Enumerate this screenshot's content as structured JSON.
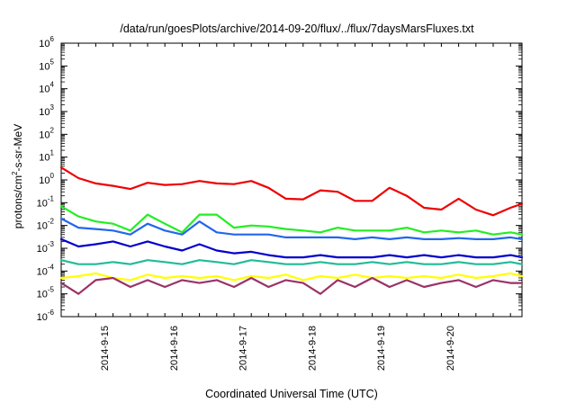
{
  "chart_data": {
    "type": "line",
    "title": "/data/run/goesPlots/archive/2014-09-20/flux/../flux/7daysMarsFluxes.txt",
    "xlabel": "Coordinated Universal Time (UTC)",
    "ylabel": {
      "base": "protons/cm",
      "sup": "2",
      "rest": "-s-sr-MeV"
    },
    "yscale": "log",
    "ylim_exponents": [
      -6,
      6
    ],
    "y_ticks": [
      {
        "base": "10",
        "exp": "-6"
      },
      {
        "base": "10",
        "exp": "-5"
      },
      {
        "base": "10",
        "exp": "-4"
      },
      {
        "base": "10",
        "exp": "-3"
      },
      {
        "base": "10",
        "exp": "-2"
      },
      {
        "base": "10",
        "exp": "-1"
      },
      {
        "base": "10",
        "exp": "0"
      },
      {
        "base": "10",
        "exp": "1"
      },
      {
        "base": "10",
        "exp": "2"
      },
      {
        "base": "10",
        "exp": "3"
      },
      {
        "base": "10",
        "exp": "4"
      },
      {
        "base": "10",
        "exp": "5"
      },
      {
        "base": "10",
        "exp": "6"
      }
    ],
    "xlim": [
      "2014-09-14 09:00",
      "2014-09-21 01:00"
    ],
    "x_ticks": [
      {
        "date": "2014-09-15",
        "label": "2014-9-15"
      },
      {
        "date": "2014-09-16",
        "label": "2014-9-16"
      },
      {
        "date": "2014-09-17",
        "label": "2014-9-17"
      },
      {
        "date": "2014-09-18",
        "label": "2014-9-18"
      },
      {
        "date": "2014-09-19",
        "label": "2014-9-19"
      },
      {
        "date": "2014-09-20",
        "label": "2014-9-20"
      }
    ],
    "grid": false,
    "series": [
      {
        "color": "#ee0000",
        "x": [
          "2014-09-14 09:00",
          "2014-09-14 15:00",
          "2014-09-14 21:00",
          "2014-09-15 03:00",
          "2014-09-15 09:00",
          "2014-09-15 15:00",
          "2014-09-15 21:00",
          "2014-09-16 03:00",
          "2014-09-16 09:00",
          "2014-09-16 15:00",
          "2014-09-16 21:00",
          "2014-09-17 03:00",
          "2014-09-17 09:00",
          "2014-09-17 15:00",
          "2014-09-17 21:00",
          "2014-09-18 03:00",
          "2014-09-18 09:00",
          "2014-09-18 15:00",
          "2014-09-18 21:00",
          "2014-09-19 03:00",
          "2014-09-19 09:00",
          "2014-09-19 15:00",
          "2014-09-19 21:00",
          "2014-09-20 03:00",
          "2014-09-20 09:00",
          "2014-09-20 15:00",
          "2014-09-20 21:00",
          "2014-09-21 01:00"
        ],
        "y": [
          3.5,
          1.2,
          0.7,
          0.55,
          0.4,
          0.75,
          0.6,
          0.65,
          0.9,
          0.7,
          0.65,
          0.9,
          0.45,
          0.15,
          0.14,
          0.35,
          0.3,
          0.12,
          0.12,
          0.45,
          0.2,
          0.06,
          0.05,
          0.15,
          0.05,
          0.028,
          0.06,
          0.09
        ]
      },
      {
        "color": "#22ee22",
        "x": [
          "2014-09-14 09:00",
          "2014-09-14 15:00",
          "2014-09-14 21:00",
          "2014-09-15 03:00",
          "2014-09-15 09:00",
          "2014-09-15 15:00",
          "2014-09-15 21:00",
          "2014-09-16 03:00",
          "2014-09-16 09:00",
          "2014-09-16 15:00",
          "2014-09-16 21:00",
          "2014-09-17 03:00",
          "2014-09-17 09:00",
          "2014-09-17 15:00",
          "2014-09-17 21:00",
          "2014-09-18 03:00",
          "2014-09-18 09:00",
          "2014-09-18 15:00",
          "2014-09-18 21:00",
          "2014-09-19 03:00",
          "2014-09-19 09:00",
          "2014-09-19 15:00",
          "2014-09-19 21:00",
          "2014-09-20 03:00",
          "2014-09-20 09:00",
          "2014-09-20 15:00",
          "2014-09-20 21:00",
          "2014-09-21 01:00"
        ],
        "y": [
          0.07,
          0.025,
          0.015,
          0.012,
          0.006,
          0.03,
          0.012,
          0.005,
          0.03,
          0.03,
          0.008,
          0.01,
          0.009,
          0.007,
          0.006,
          0.005,
          0.008,
          0.006,
          0.006,
          0.006,
          0.008,
          0.005,
          0.006,
          0.005,
          0.006,
          0.004,
          0.005,
          0.004
        ]
      },
      {
        "color": "#2266ee",
        "x": [
          "2014-09-14 09:00",
          "2014-09-14 15:00",
          "2014-09-14 21:00",
          "2014-09-15 03:00",
          "2014-09-15 09:00",
          "2014-09-15 15:00",
          "2014-09-15 21:00",
          "2014-09-16 03:00",
          "2014-09-16 09:00",
          "2014-09-16 15:00",
          "2014-09-16 21:00",
          "2014-09-17 03:00",
          "2014-09-17 09:00",
          "2014-09-17 15:00",
          "2014-09-17 21:00",
          "2014-09-18 03:00",
          "2014-09-18 09:00",
          "2014-09-18 15:00",
          "2014-09-18 21:00",
          "2014-09-19 03:00",
          "2014-09-19 09:00",
          "2014-09-19 15:00",
          "2014-09-19 21:00",
          "2014-09-20 03:00",
          "2014-09-20 09:00",
          "2014-09-20 15:00",
          "2014-09-20 21:00",
          "2014-09-21 01:00"
        ],
        "y": [
          0.02,
          0.008,
          0.007,
          0.006,
          0.004,
          0.012,
          0.006,
          0.004,
          0.015,
          0.005,
          0.004,
          0.004,
          0.004,
          0.003,
          0.003,
          0.003,
          0.003,
          0.0025,
          0.003,
          0.0025,
          0.003,
          0.0025,
          0.0025,
          0.0028,
          0.0025,
          0.0025,
          0.003,
          0.0025
        ]
      },
      {
        "color": "#0000cc",
        "x": [
          "2014-09-14 09:00",
          "2014-09-14 15:00",
          "2014-09-14 21:00",
          "2014-09-15 03:00",
          "2014-09-15 09:00",
          "2014-09-15 15:00",
          "2014-09-15 21:00",
          "2014-09-16 03:00",
          "2014-09-16 09:00",
          "2014-09-16 15:00",
          "2014-09-16 21:00",
          "2014-09-17 03:00",
          "2014-09-17 09:00",
          "2014-09-17 15:00",
          "2014-09-17 21:00",
          "2014-09-18 03:00",
          "2014-09-18 09:00",
          "2014-09-18 15:00",
          "2014-09-18 21:00",
          "2014-09-19 03:00",
          "2014-09-19 09:00",
          "2014-09-19 15:00",
          "2014-09-19 21:00",
          "2014-09-20 03:00",
          "2014-09-20 09:00",
          "2014-09-20 15:00",
          "2014-09-20 21:00",
          "2014-09-21 01:00"
        ],
        "y": [
          0.0025,
          0.0012,
          0.0015,
          0.002,
          0.0012,
          0.002,
          0.0012,
          0.0008,
          0.0015,
          0.0008,
          0.0006,
          0.0007,
          0.0005,
          0.0004,
          0.0004,
          0.0005,
          0.0004,
          0.0004,
          0.0004,
          0.0005,
          0.0004,
          0.0005,
          0.0004,
          0.0005,
          0.0004,
          0.0004,
          0.0005,
          0.0004
        ]
      },
      {
        "color": "#22bb99",
        "x": [
          "2014-09-14 09:00",
          "2014-09-14 15:00",
          "2014-09-14 21:00",
          "2014-09-15 03:00",
          "2014-09-15 09:00",
          "2014-09-15 15:00",
          "2014-09-15 21:00",
          "2014-09-16 03:00",
          "2014-09-16 09:00",
          "2014-09-16 15:00",
          "2014-09-16 21:00",
          "2014-09-17 03:00",
          "2014-09-17 09:00",
          "2014-09-17 15:00",
          "2014-09-17 21:00",
          "2014-09-18 03:00",
          "2014-09-18 09:00",
          "2014-09-18 15:00",
          "2014-09-18 21:00",
          "2014-09-19 03:00",
          "2014-09-19 09:00",
          "2014-09-19 15:00",
          "2014-09-19 21:00",
          "2014-09-20 03:00",
          "2014-09-20 09:00",
          "2014-09-20 15:00",
          "2014-09-20 21:00",
          "2014-09-21 01:00"
        ],
        "y": [
          0.0003,
          0.0002,
          0.0002,
          0.00025,
          0.0002,
          0.0003,
          0.00025,
          0.0002,
          0.0003,
          0.00025,
          0.0002,
          0.0003,
          0.00025,
          0.0002,
          0.0002,
          0.00025,
          0.0002,
          0.0002,
          0.00025,
          0.0002,
          0.00025,
          0.0002,
          0.0002,
          0.00025,
          0.0002,
          0.0002,
          0.00025,
          0.0002
        ]
      },
      {
        "color": "#ffff00",
        "x": [
          "2014-09-14 09:00",
          "2014-09-14 15:00",
          "2014-09-14 21:00",
          "2014-09-15 03:00",
          "2014-09-15 09:00",
          "2014-09-15 15:00",
          "2014-09-15 21:00",
          "2014-09-16 03:00",
          "2014-09-16 09:00",
          "2014-09-16 15:00",
          "2014-09-16 21:00",
          "2014-09-17 03:00",
          "2014-09-17 09:00",
          "2014-09-17 15:00",
          "2014-09-17 21:00",
          "2014-09-18 03:00",
          "2014-09-18 09:00",
          "2014-09-18 15:00",
          "2014-09-18 21:00",
          "2014-09-19 03:00",
          "2014-09-19 09:00",
          "2014-09-19 15:00",
          "2014-09-19 21:00",
          "2014-09-20 03:00",
          "2014-09-20 09:00",
          "2014-09-20 15:00",
          "2014-09-20 21:00",
          "2014-09-21 01:00"
        ],
        "y": [
          5e-05,
          6e-05,
          8e-05,
          5e-05,
          4e-05,
          7e-05,
          5e-05,
          6e-05,
          5e-05,
          6e-05,
          4e-05,
          6e-05,
          5e-05,
          7e-05,
          4e-05,
          6e-05,
          5e-05,
          7e-05,
          5e-05,
          6e-05,
          5e-05,
          6e-05,
          5e-05,
          7e-05,
          5e-05,
          6e-05,
          8e-05,
          6e-05
        ]
      },
      {
        "color": "#993366",
        "x": [
          "2014-09-14 09:00",
          "2014-09-14 15:00",
          "2014-09-14 21:00",
          "2014-09-15 03:00",
          "2014-09-15 09:00",
          "2014-09-15 15:00",
          "2014-09-15 21:00",
          "2014-09-16 03:00",
          "2014-09-16 09:00",
          "2014-09-16 15:00",
          "2014-09-16 21:00",
          "2014-09-17 03:00",
          "2014-09-17 09:00",
          "2014-09-17 15:00",
          "2014-09-17 21:00",
          "2014-09-18 03:00",
          "2014-09-18 09:00",
          "2014-09-18 15:00",
          "2014-09-18 21:00",
          "2014-09-19 03:00",
          "2014-09-19 09:00",
          "2014-09-19 15:00",
          "2014-09-19 21:00",
          "2014-09-20 03:00",
          "2014-09-20 09:00",
          "2014-09-20 15:00",
          "2014-09-20 21:00",
          "2014-09-21 01:00"
        ],
        "y": [
          3e-05,
          1e-05,
          4e-05,
          5e-05,
          2e-05,
          4e-05,
          2e-05,
          4e-05,
          3e-05,
          4e-05,
          2e-05,
          5e-05,
          2e-05,
          4e-05,
          3e-05,
          1e-05,
          4e-05,
          2e-05,
          5e-05,
          2e-05,
          4e-05,
          2e-05,
          3e-05,
          4e-05,
          2e-05,
          4e-05,
          3e-05,
          3e-05
        ]
      }
    ]
  }
}
